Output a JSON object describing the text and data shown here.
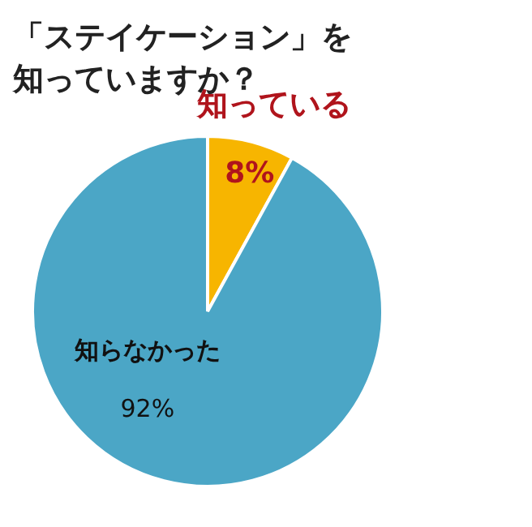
{
  "chart_data": {
    "type": "pie",
    "title": "「ステイケーション」を知っていますか？",
    "categories": [
      "知っている",
      "知らなかった"
    ],
    "values": [
      8,
      92
    ],
    "value_labels": [
      "8%",
      "92%"
    ],
    "colors": [
      "#f7b500",
      "#4ba6c6"
    ]
  }
}
